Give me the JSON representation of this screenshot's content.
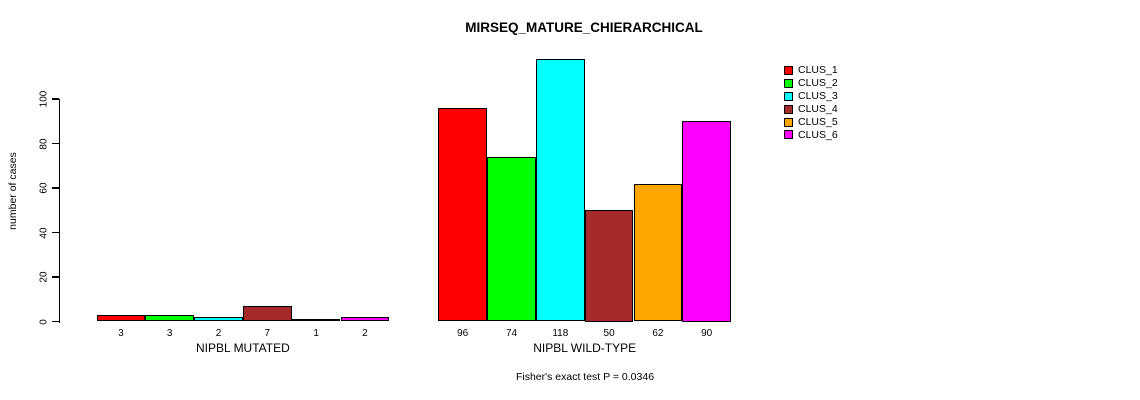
{
  "chart_data": {
    "type": "bar",
    "title": "MIRSEQ_MATURE_CHIERARCHICAL",
    "ylabel": "number of cases",
    "xlabel": "",
    "ylim": [
      0,
      100
    ],
    "yticks": [
      0,
      20,
      40,
      60,
      80,
      100
    ],
    "grid": false,
    "legend_position": "right",
    "categories": [
      "NIPBL MUTATED",
      "NIPBL WILD-TYPE"
    ],
    "series": [
      {
        "name": "CLUS_1",
        "color": "#FF0000",
        "values": [
          3,
          96
        ]
      },
      {
        "name": "CLUS_2",
        "color": "#00FF00",
        "values": [
          3,
          74
        ]
      },
      {
        "name": "CLUS_3",
        "color": "#00FFFF",
        "values": [
          2,
          118
        ]
      },
      {
        "name": "CLUS_4",
        "color": "#A52A2A",
        "values": [
          7,
          50
        ]
      },
      {
        "name": "CLUS_5",
        "color": "#FFA500",
        "values": [
          1,
          62
        ]
      },
      {
        "name": "CLUS_6",
        "color": "#FF00FF",
        "values": [
          2,
          90
        ]
      }
    ],
    "bar_value_labels_shown": true,
    "annotation": "Fisher's exact test P = 0.0346"
  },
  "colors": {
    "background": "#FFFFFF",
    "axis": "#000000",
    "text": "#000000"
  }
}
